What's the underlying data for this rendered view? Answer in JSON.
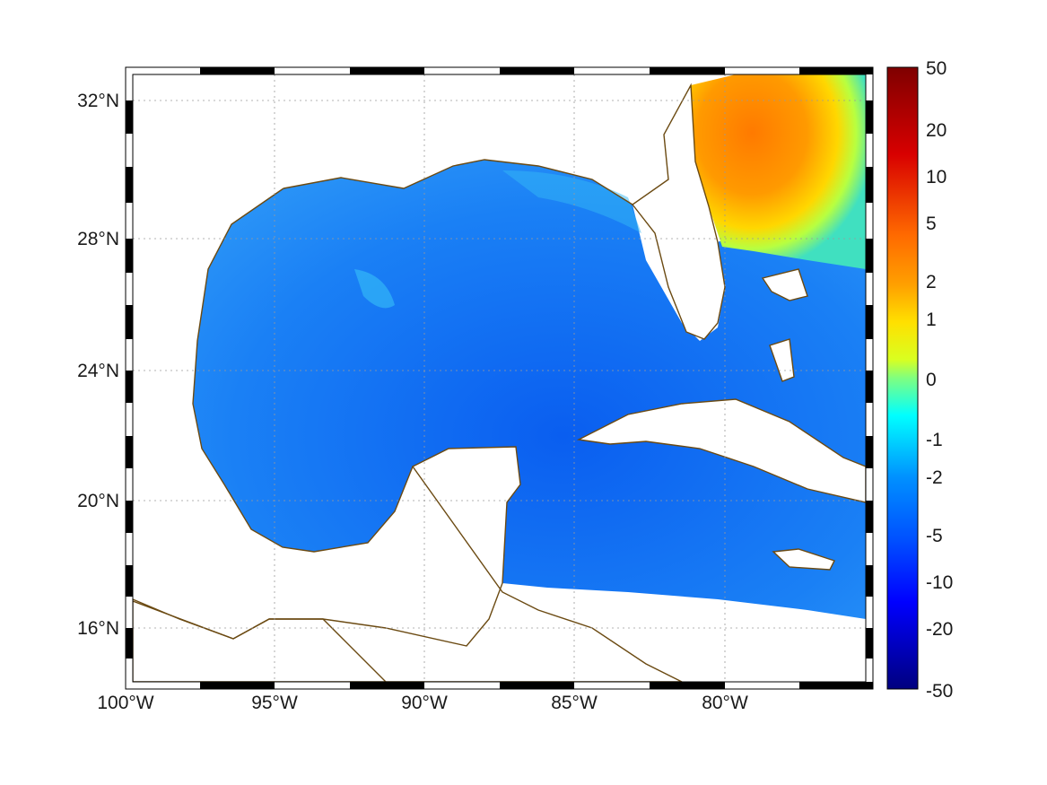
{
  "map": {
    "lat_ticks": [
      "32°N",
      "28°N",
      "24°N",
      "20°N",
      "16°N"
    ],
    "lon_ticks": [
      "100°W",
      "95°W",
      "90°W",
      "85°W",
      "80°W"
    ],
    "grid": true,
    "coastline_color": "#6b4a12",
    "land_color": "#ffffff"
  },
  "colorbar": {
    "ticks": [
      "50",
      "20",
      "10",
      "5",
      "2",
      "1",
      "0",
      "-1",
      "-2",
      "-5",
      "-10",
      "-20",
      "-50"
    ],
    "colors": [
      "#7f0000",
      "#ff0000",
      "#ff8a00",
      "#ffff00",
      "#00ffff",
      "#0073ff",
      "#0000ff",
      "#00007f"
    ]
  }
}
